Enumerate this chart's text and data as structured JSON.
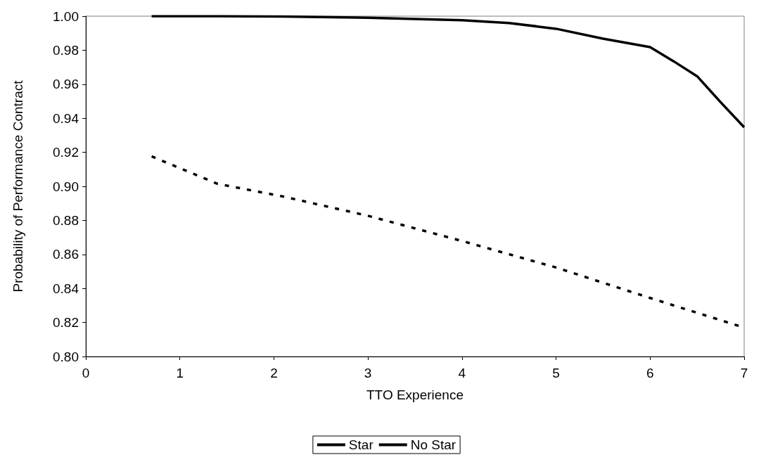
{
  "chart_data": {
    "type": "line",
    "xlabel": "TTO Experience",
    "ylabel": "Probability of Performance Contract",
    "xlim": [
      0,
      7
    ],
    "xticks": [
      0,
      1,
      2,
      3,
      4,
      5,
      6,
      7
    ],
    "ylim": [
      0.8,
      1.0
    ],
    "yticks": [
      {
        "value": 0.8,
        "label": "0.80"
      },
      {
        "value": 0.82,
        "label": "0.82"
      },
      {
        "value": 0.84,
        "label": "0.84"
      },
      {
        "value": 0.86,
        "label": "0.86"
      },
      {
        "value": 0.88,
        "label": "0.88"
      },
      {
        "value": 0.9,
        "label": "0.90"
      },
      {
        "value": 0.92,
        "label": "0.92"
      },
      {
        "value": 0.94,
        "label": "0.94"
      },
      {
        "value": 0.96,
        "label": "0.96"
      },
      {
        "value": 0.98,
        "label": "0.98"
      },
      {
        "value": 1.0,
        "label": "1.00"
      }
    ],
    "grid": false,
    "legend": "bottom",
    "marker": "none",
    "series": [
      {
        "name": "Star",
        "color": "#000000",
        "line_style": "solid",
        "x": [
          0.7,
          1.4,
          2.1,
          3,
          4,
          4.5,
          5,
          5.5,
          6,
          6.25,
          6.5,
          6.75,
          7
        ],
        "values": [
          1.0,
          1.0,
          0.9998,
          0.9991,
          0.9976,
          0.996,
          0.9926,
          0.9868,
          0.9818,
          0.9735,
          0.9647,
          0.9494,
          0.9347
        ]
      },
      {
        "name": "No Star",
        "color": "#000000",
        "line_style": "dashed",
        "x": [
          0.7,
          1.4,
          2.1,
          3,
          4,
          5,
          6,
          7
        ],
        "values": [
          0.9176,
          0.9015,
          0.894,
          0.8827,
          0.8679,
          0.8523,
          0.8344,
          0.817
        ]
      }
    ]
  }
}
